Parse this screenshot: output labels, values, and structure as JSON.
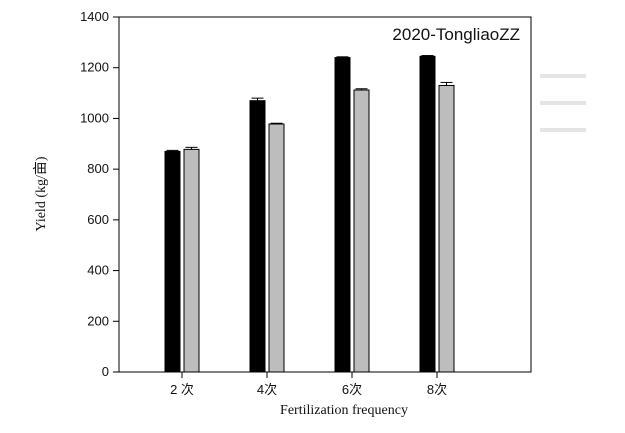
{
  "chart_data": {
    "type": "bar",
    "title": "2020-TongliaoZZ",
    "xlabel": "Fertilization frequency",
    "ylabel": "Yield (kg/亩)",
    "categories": [
      "2 次",
      "4次",
      "6次",
      "8次"
    ],
    "ylim": [
      0,
      1400
    ],
    "yticks": [
      0,
      200,
      400,
      600,
      800,
      1000,
      1200,
      1400
    ],
    "grid": false,
    "series": [
      {
        "values": [
          870,
          1070,
          1240,
          1245
        ],
        "errors": [
          4,
          10,
          3,
          3
        ],
        "color": "#000000"
      },
      {
        "values": [
          878,
          978,
          1112,
          1130
        ],
        "errors": [
          8,
          3,
          5,
          12
        ],
        "color": "#bdbdbd"
      }
    ]
  }
}
